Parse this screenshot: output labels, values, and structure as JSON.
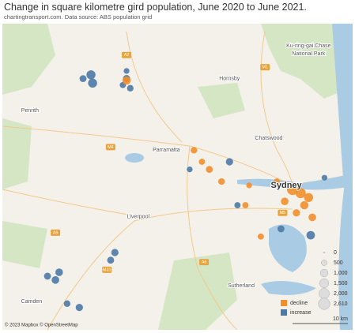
{
  "title": "Change in square kilometre gird population, June 2020 to June 2021.",
  "subtitle": "chartingtransport.com.  Data source: ABS population grid",
  "attribution": "© 2023 Mapbox © OpenStreetMap",
  "scale_bar": "10 km",
  "map": {
    "lonlim": [
      150.651,
      151.311
    ],
    "latlim": [
      -34.096,
      -33.617
    ]
  },
  "places": [
    {
      "name": "Sydney",
      "lon": 151.186,
      "lat": -33.87,
      "major": true
    },
    {
      "name": "Parramatta",
      "lon": 150.96,
      "lat": -33.815
    },
    {
      "name": "Chatswood",
      "lon": 151.153,
      "lat": -33.796
    },
    {
      "name": "Hornsby",
      "lon": 151.079,
      "lat": -33.703
    },
    {
      "name": "Liverpool",
      "lon": 150.907,
      "lat": -33.919
    },
    {
      "name": "Penrith",
      "lon": 150.703,
      "lat": -33.753
    },
    {
      "name": "Camden",
      "lon": 150.706,
      "lat": -34.052
    },
    {
      "name": "Sutherland",
      "lon": 151.101,
      "lat": -34.027
    },
    {
      "name": "Ku-ring-gai Chase",
      "lon": 151.228,
      "lat": -33.652
    },
    {
      "name": "National Park",
      "lon": 151.228,
      "lat": -33.664
    }
  ],
  "roads": [
    {
      "name": "A2",
      "lon": 150.885,
      "lat": -33.666
    },
    {
      "name": "M1",
      "lon": 151.146,
      "lat": -33.685
    },
    {
      "name": "M4",
      "lon": 150.855,
      "lat": -33.81
    },
    {
      "name": "M5",
      "lon": 151.179,
      "lat": -33.913
    },
    {
      "name": "M31",
      "lon": 150.848,
      "lat": -34.002
    },
    {
      "name": "A9",
      "lon": 150.751,
      "lat": -33.944
    },
    {
      "name": "A6",
      "lon": 151.031,
      "lat": -33.99
    }
  ],
  "legend": {
    "sizes": [
      0,
      {
        "value": 500,
        "label": "500"
      },
      {
        "value": 1000,
        "label": "1,000"
      },
      {
        "value": 1500,
        "label": "1,500"
      },
      {
        "value": 2000,
        "label": "2,000"
      },
      {
        "value": 2610,
        "label": "2,610"
      }
    ],
    "colors": [
      {
        "name": "decline",
        "color": "#f28e2b"
      },
      {
        "name": "increase",
        "color": "#4e79a7"
      }
    ]
  },
  "cells": [
    {
      "lon": 150.818,
      "lat": -33.697,
      "change": 1500
    },
    {
      "lon": 150.821,
      "lat": -33.71,
      "change": 1500
    },
    {
      "lon": 150.803,
      "lat": -33.703,
      "change": 800
    },
    {
      "lon": 150.885,
      "lat": -33.703,
      "change": 900
    },
    {
      "lon": 150.892,
      "lat": -33.718,
      "change": 700
    },
    {
      "lon": 150.885,
      "lat": -33.691,
      "change": 500
    },
    {
      "lon": 150.878,
      "lat": -33.713,
      "change": 600
    },
    {
      "lon": 150.885,
      "lat": -33.706,
      "change": -1200
    },
    {
      "lon": 151.198,
      "lat": -33.876,
      "change": -2610
    },
    {
      "lon": 151.213,
      "lat": -33.882,
      "change": -2000
    },
    {
      "lon": 151.228,
      "lat": -33.889,
      "change": -1500
    },
    {
      "lon": 151.22,
      "lat": -33.901,
      "change": -1200
    },
    {
      "lon": 151.183,
      "lat": -33.895,
      "change": -1000
    },
    {
      "lon": 151.235,
      "lat": -33.92,
      "change": -1000
    },
    {
      "lon": 151.205,
      "lat": -33.913,
      "change": -900
    },
    {
      "lon": 151.168,
      "lat": -33.864,
      "change": -600
    },
    {
      "lon": 151.041,
      "lat": -33.845,
      "change": -800
    },
    {
      "lon": 151.012,
      "lat": -33.815,
      "change": -700
    },
    {
      "lon": 151.064,
      "lat": -33.864,
      "change": -700
    },
    {
      "lon": 151.109,
      "lat": -33.901,
      "change": -600
    },
    {
      "lon": 151.138,
      "lat": -33.95,
      "change": -600
    },
    {
      "lon": 151.116,
      "lat": -33.87,
      "change": -500
    },
    {
      "lon": 151.027,
      "lat": -33.833,
      "change": -600
    },
    {
      "lon": 151.232,
      "lat": -33.948,
      "change": 1300
    },
    {
      "lon": 151.079,
      "lat": -33.833,
      "change": 900
    },
    {
      "lon": 151.176,
      "lat": -33.938,
      "change": 800
    },
    {
      "lon": 150.758,
      "lat": -34.006,
      "change": 1000
    },
    {
      "lon": 150.751,
      "lat": -34.018,
      "change": 1000
    },
    {
      "lon": 150.736,
      "lat": -34.012,
      "change": 800
    },
    {
      "lon": 150.863,
      "lat": -33.975,
      "change": 900
    },
    {
      "lon": 150.855,
      "lat": -33.987,
      "change": 800
    },
    {
      "lon": 150.796,
      "lat": -34.061,
      "change": 900
    },
    {
      "lon": 150.773,
      "lat": -34.055,
      "change": 700
    },
    {
      "lon": 151.094,
      "lat": -33.901,
      "change": 600
    },
    {
      "lon": 151.258,
      "lat": -33.858,
      "change": 500
    },
    {
      "lon": 151.004,
      "lat": -33.845,
      "change": 500
    }
  ]
}
